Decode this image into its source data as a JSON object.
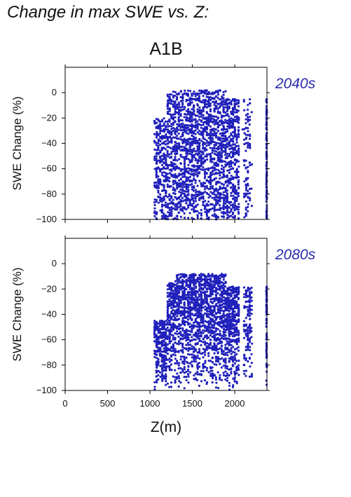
{
  "figure": {
    "title": "Change in max SWE vs. Z:",
    "scenario": "A1B"
  },
  "colors": {
    "points": "#2020bb",
    "axes": "#000000",
    "period_label": "#2a2ab0"
  },
  "chart_data": [
    {
      "type": "scatter",
      "period": "2040s",
      "ylabel": "SWE Change (%)",
      "xlabel": "",
      "xlim": [
        0,
        2380
      ],
      "ylim": [
        -100,
        20
      ],
      "yticks": [
        0,
        -20,
        -40,
        -60,
        -80,
        -100
      ],
      "xticks": [
        0,
        500,
        1000,
        1500,
        2000
      ],
      "show_x_tick_labels": false,
      "grid": false,
      "color": "#2020bb",
      "x_range_of_points": [
        1050,
        2380
      ],
      "y_range_of_points": [
        -100,
        4
      ]
    },
    {
      "type": "scatter",
      "period": "2080s",
      "ylabel": "SWE Change (%)",
      "xlabel": "Z(m)",
      "xlim": [
        0,
        2380
      ],
      "ylim": [
        -100,
        20
      ],
      "yticks": [
        0,
        -20,
        -40,
        -60,
        -80,
        -100
      ],
      "xticks": [
        0,
        500,
        1000,
        1500,
        2000
      ],
      "xtick_labels": [
        "0",
        "500",
        "1000",
        "1500",
        "2000"
      ],
      "show_x_tick_labels": true,
      "grid": false,
      "color": "#2020bb",
      "x_range_of_points": [
        1050,
        2380
      ],
      "y_range_of_points": [
        -100,
        -8
      ]
    }
  ]
}
